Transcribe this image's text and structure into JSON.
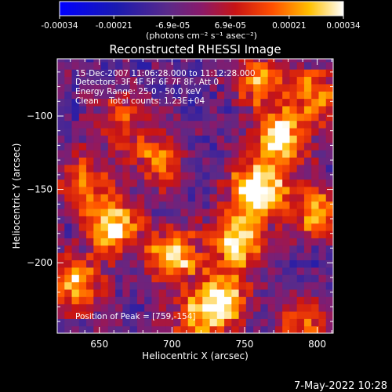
{
  "colorbar": {
    "ticks": [
      "-0.00034",
      "-0.00021",
      "-6.9e-05",
      "6.9e-05",
      "0.00021",
      "0.00034"
    ],
    "tick_values": [
      -0.00034,
      -0.00021,
      -6.9e-05,
      6.9e-05,
      0.00021,
      0.00034
    ],
    "range": [
      -0.00034,
      0.00034
    ],
    "unit_label": "(photons cm⁻² s⁻¹ asec⁻²)"
  },
  "chart_data": {
    "type": "heatmap",
    "title": "Reconstructed RHESSI Image",
    "xlabel": "Heliocentric X (arcsec)",
    "ylabel": "Heliocentric Y (arcsec)",
    "xlim": [
      621,
      811
    ],
    "ylim": [
      -248,
      -61
    ],
    "x_ticks": [
      650,
      700,
      750,
      800
    ],
    "x_tick_labels": [
      "650",
      "700",
      "750",
      "800"
    ],
    "y_ticks": [
      -100,
      -150,
      -200
    ],
    "y_tick_labels": [
      "−100",
      "−150",
      "−200"
    ],
    "peak": [
      759,
      -154
    ],
    "bright_regions": [
      {
        "x": 759,
        "y": -150,
        "level": 1.0
      },
      {
        "x": 775,
        "y": -115,
        "level": 0.85
      },
      {
        "x": 745,
        "y": -185,
        "level": 0.8
      },
      {
        "x": 735,
        "y": -225,
        "level": 0.8
      },
      {
        "x": 700,
        "y": -195,
        "level": 0.75
      },
      {
        "x": 660,
        "y": -175,
        "level": 0.8
      },
      {
        "x": 635,
        "y": -215,
        "level": 0.7
      },
      {
        "x": 690,
        "y": -130,
        "level": 0.55
      },
      {
        "x": 640,
        "y": -145,
        "level": 0.55
      },
      {
        "x": 760,
        "y": -75,
        "level": 0.6
      },
      {
        "x": 800,
        "y": -165,
        "level": 0.65
      },
      {
        "x": 800,
        "y": -85,
        "level": 0.6
      },
      {
        "x": 715,
        "y": -240,
        "level": 0.5
      },
      {
        "x": 790,
        "y": -240,
        "level": 0.5
      },
      {
        "x": 665,
        "y": -100,
        "level": 0.45
      }
    ],
    "annotations": [
      "15-Dec-2007 11:06:28.000 to 11:12:28.000",
      "Detectors: 3F 4F 5F 6F 7F 8F, Att 0",
      "Energy Range: 25.0 - 50.0 keV",
      "Clean    Total counts: 1.23E+04"
    ],
    "peak_label": "Position of Peak = [759,-154]",
    "colormap": "blue-purple-red-yellow-white"
  },
  "footer": {
    "timestamp": "7-May-2022 10:28"
  }
}
